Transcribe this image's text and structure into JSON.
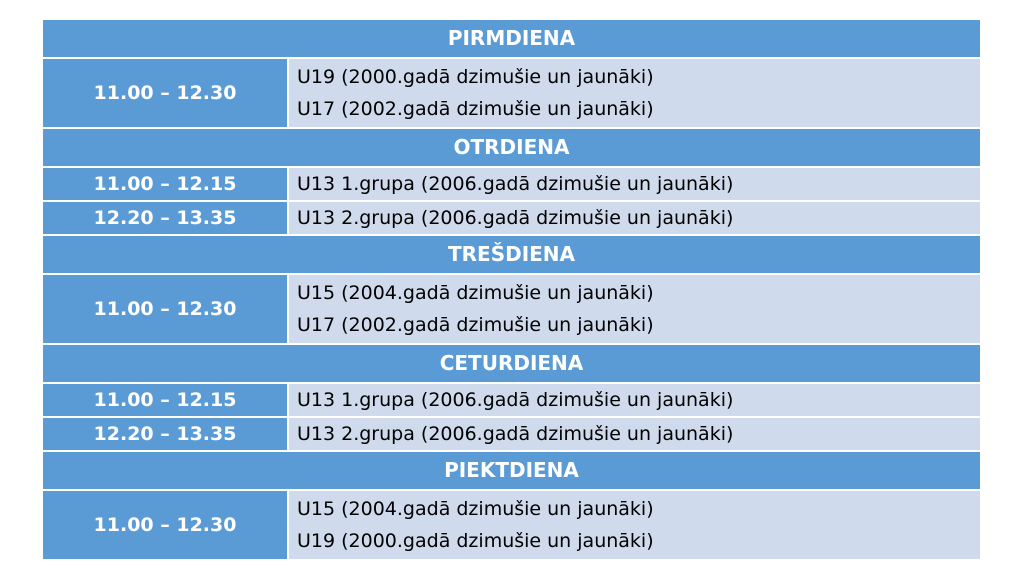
{
  "days": [
    {
      "name": "PIRMDIENA",
      "rows": [
        {
          "time": "11.00 – 12.30",
          "groups": [
            "U19 (2000.gadā dzimušie un jaunāki)",
            "U17 (2002.gadā dzimušie un jaunāki)"
          ]
        }
      ]
    },
    {
      "name": "OTRDIENA",
      "rows": [
        {
          "time": "11.00 – 12.15",
          "groups": [
            "U13 1.grupa (2006.gadā dzimušie un jaunāki)"
          ]
        },
        {
          "time": "12.20 – 13.35",
          "groups": [
            "U13 2.grupa (2006.gadā dzimušie un jaunāki)"
          ]
        }
      ]
    },
    {
      "name": "TREŠDIENA",
      "rows": [
        {
          "time": "11.00 – 12.30",
          "groups": [
            "U15 (2004.gadā dzimušie un jaunāki)",
            "U17 (2002.gadā dzimušie un jaunāki)"
          ]
        }
      ]
    },
    {
      "name": "CETURDIENA",
      "rows": [
        {
          "time": "11.00 – 12.15",
          "groups": [
            "U13 1.grupa (2006.gadā dzimušie un jaunāki)"
          ]
        },
        {
          "time": "12.20 – 13.35",
          "groups": [
            "U13 2.grupa (2006.gadā dzimušie un jaunāki)"
          ]
        }
      ]
    },
    {
      "name": "PIEKTDIENA",
      "rows": [
        {
          "time": "11.00 – 12.30",
          "groups": [
            "U15 (2004.gadā dzimušie un jaunāki)",
            "U19 (2000.gadā dzimušie un jaunāki)"
          ]
        }
      ]
    }
  ],
  "colors": {
    "header": "#5B9BD5",
    "cell": "#CFDAEC"
  }
}
